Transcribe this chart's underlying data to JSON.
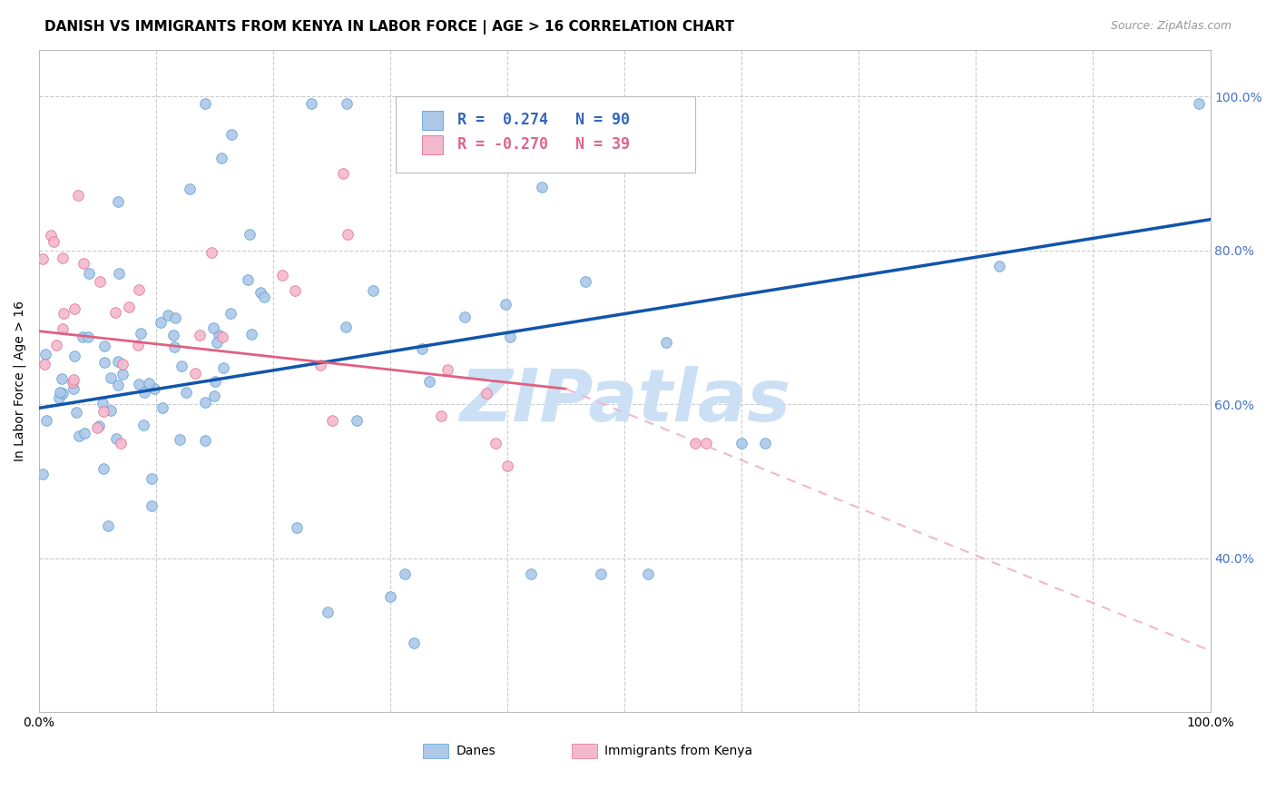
{
  "title": "DANISH VS IMMIGRANTS FROM KENYA IN LABOR FORCE | AGE > 16 CORRELATION CHART",
  "source": "Source: ZipAtlas.com",
  "ylabel": "In Labor Force | Age > 16",
  "xlim": [
    0,
    1
  ],
  "ylim": [
    0.2,
    1.06
  ],
  "y_ticks_right": [
    0.4,
    0.6,
    0.8,
    1.0
  ],
  "y_tick_labels_right": [
    "40.0%",
    "60.0%",
    "80.0%",
    "100.0%"
  ],
  "danes_color": "#adc8e8",
  "danes_edge_color": "#5a9fd4",
  "kenya_color": "#f4b8ce",
  "kenya_edge_color": "#e0708e",
  "blue_line_color": "#1155aa",
  "pink_line_color": "#e06080",
  "dashed_line_color": "#f0b8cc",
  "danes_R": 0.274,
  "danes_N": 90,
  "kenya_R": -0.27,
  "kenya_N": 39,
  "watermark": "ZIPatlas",
  "watermark_color": "#cce0f5",
  "title_fontsize": 11,
  "label_fontsize": 10,
  "tick_fontsize": 10,
  "legend_fontsize": 12,
  "source_fontsize": 9,
  "marker_size": 70,
  "seed": 99
}
